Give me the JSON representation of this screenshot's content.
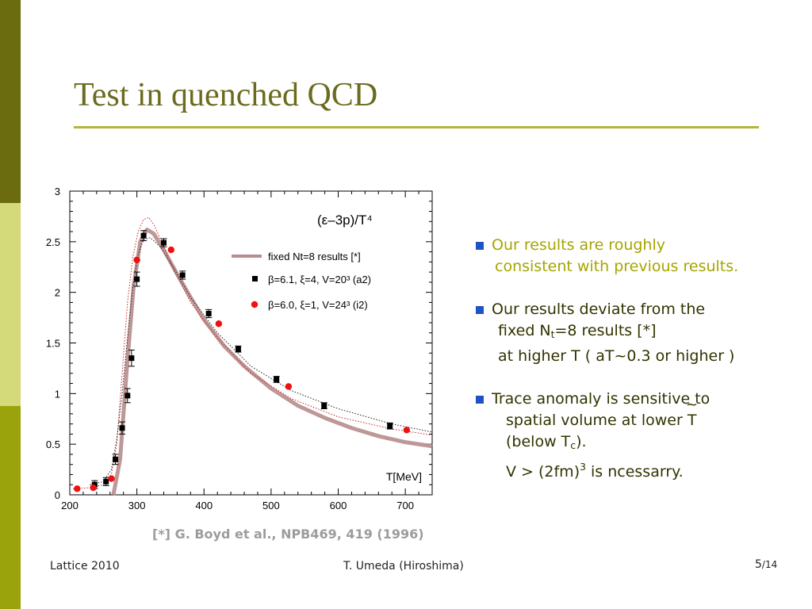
{
  "slide": {
    "title": "Test in quenched QCD",
    "accent_color": "#6b6b1f",
    "side_colors": [
      "#6b6b10",
      "#d4d97a",
      "#9aa30b"
    ]
  },
  "bullets": [
    {
      "line1": "Our results are roughly",
      "line2": "consistent with previous results."
    },
    {
      "line1": "Our results deviate from the",
      "line2_pre": "fixed N",
      "line2_sub": "t",
      "line2_post": "=8 results [*]",
      "line3": "at higher T ( aT~0.3 or higher )"
    },
    {
      "line1": "Trace anomaly is sensitive to",
      "line2": "spatial volume at lower T",
      "line3_pre": "(below T",
      "line3_sub": "c",
      "line3_post": ").",
      "line4_pre": "V > (2fm)",
      "line4_sup": "3",
      "line4_post": " is ncessarry.",
      "tilde": "~"
    }
  ],
  "reference": "[*] G. Boyd et al., NPB469, 419 (1996)",
  "footer": {
    "left": "Lattice 2010",
    "center": "T. Umeda (Hiroshima)",
    "page": "5",
    "total": "/14"
  },
  "chart_data": {
    "type": "line",
    "title": "(ε–3p)/T⁴",
    "xlabel": "T[MeV]",
    "ylabel": "",
    "xlim": [
      200,
      740
    ],
    "ylim": [
      0,
      3
    ],
    "xticks": [
      200,
      300,
      400,
      500,
      600,
      700
    ],
    "yticks": [
      0,
      0.5,
      1,
      1.5,
      2,
      2.5,
      3
    ],
    "ytick_labels": [
      "0",
      "0.5",
      "1",
      "1.5",
      "2",
      "2.5",
      "3"
    ],
    "legend_placement": "top-right",
    "series": [
      {
        "name": "fixed Nt=8 results [*]",
        "style": "band",
        "color": "#b78c8c",
        "x": [
          265,
          275,
          285,
          295,
          305,
          315,
          325,
          340,
          360,
          380,
          400,
          430,
          460,
          500,
          540,
          580,
          620,
          660,
          700,
          740
        ],
        "y": [
          0.0,
          0.35,
          1.25,
          2.05,
          2.5,
          2.62,
          2.58,
          2.42,
          2.18,
          1.95,
          1.73,
          1.47,
          1.27,
          1.05,
          0.88,
          0.76,
          0.66,
          0.58,
          0.52,
          0.48
        ]
      },
      {
        "name": "β=6.1, ξ=4, V=20³ (a2)",
        "style": "square",
        "color": "#000000",
        "x": [
          237,
          254,
          268,
          278,
          286,
          292,
          300,
          310,
          340,
          368,
          407,
          451,
          508,
          579,
          677
        ],
        "y": [
          0.1,
          0.13,
          0.35,
          0.66,
          0.98,
          1.35,
          2.13,
          2.56,
          2.49,
          2.17,
          1.79,
          1.44,
          1.14,
          0.88,
          0.68
        ],
        "err": [
          0.04,
          0.04,
          0.05,
          0.06,
          0.07,
          0.08,
          0.07,
          0.05,
          0.04,
          0.04,
          0.04,
          0.03,
          0.03,
          0.03,
          0.03
        ]
      },
      {
        "name": "β=6.0, ξ=1, V=24³ (i2)",
        "style": "circle",
        "color": "#ee1111",
        "x": [
          211,
          235,
          262,
          300,
          351,
          422,
          526,
          702
        ],
        "y": [
          0.06,
          0.07,
          0.16,
          2.32,
          2.42,
          1.69,
          1.07,
          0.64
        ]
      }
    ],
    "dotted_fits": [
      {
        "color": "#cc2222",
        "x": [
          205,
          230,
          250,
          262,
          270,
          278,
          286,
          294,
          302,
          310,
          318,
          326,
          338,
          355,
          380,
          420,
          470,
          530,
          600,
          680,
          740
        ],
        "y": [
          0.06,
          0.07,
          0.1,
          0.2,
          0.5,
          1.2,
          1.9,
          2.35,
          2.6,
          2.72,
          2.74,
          2.66,
          2.48,
          2.22,
          1.9,
          1.55,
          1.2,
          0.95,
          0.77,
          0.65,
          0.59
        ]
      },
      {
        "color": "#222222",
        "x": [
          230,
          250,
          262,
          270,
          278,
          286,
          294,
          302,
          310,
          320,
          335,
          355,
          380,
          420,
          470,
          530,
          600,
          680,
          740
        ],
        "y": [
          0.1,
          0.13,
          0.25,
          0.55,
          1.0,
          1.55,
          2.05,
          2.38,
          2.52,
          2.54,
          2.45,
          2.24,
          1.95,
          1.6,
          1.27,
          1.03,
          0.85,
          0.7,
          0.62
        ]
      }
    ]
  }
}
